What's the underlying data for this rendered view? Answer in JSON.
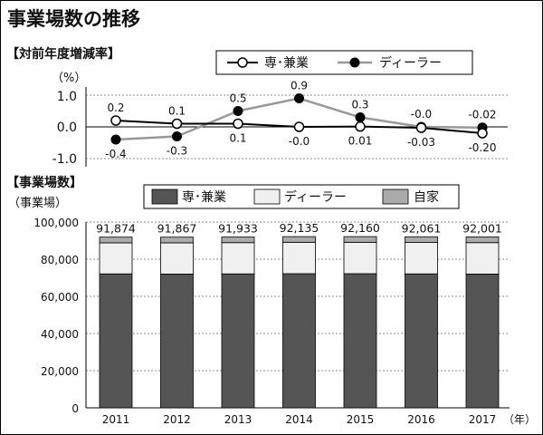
{
  "title": "事業場数の推移",
  "chart_data": [
    {
      "type": "line",
      "title": "【対前年度増減率】",
      "unit": "（%）",
      "ylim": [
        -1.0,
        1.0
      ],
      "yticks": [
        "1.0",
        "0.0",
        "-1.0"
      ],
      "x": [
        "2011",
        "2012",
        "2013",
        "2014",
        "2015",
        "2016",
        "2017"
      ],
      "series": [
        {
          "name": "専･兼業",
          "marker": "open-circle",
          "color": "#000000",
          "values": [
            0.2,
            0.1,
            0.1,
            0.0,
            0.01,
            -0.03,
            -0.2
          ],
          "labels": [
            "0.2",
            "0.1",
            "0.1",
            "-0.0",
            "0.01",
            "-0.03",
            "-0.20"
          ]
        },
        {
          "name": "ディーラー",
          "marker": "filled-circle",
          "color": "#999999",
          "values": [
            -0.4,
            -0.3,
            0.5,
            0.9,
            0.3,
            -0.0,
            -0.02
          ],
          "labels": [
            "-0.4",
            "-0.3",
            "0.5",
            "0.9",
            "0.3",
            "-0.0",
            "-0.02"
          ]
        }
      ]
    },
    {
      "type": "bar",
      "stacked": true,
      "title": "【事業場数】",
      "unit": "（事業場）",
      "categories": [
        "2011",
        "2012",
        "2013",
        "2014",
        "2015",
        "2016",
        "2017"
      ],
      "x_unit": "（年）",
      "ylim": [
        0,
        100000
      ],
      "yticks": [
        "100,000",
        "80,000",
        "60,000",
        "40,000",
        "20,000",
        "0"
      ],
      "series": [
        {
          "name": "専･兼業",
          "color": "#555555",
          "values": [
            72100,
            72000,
            72100,
            72200,
            72200,
            72100,
            72000
          ]
        },
        {
          "name": "ディーラー",
          "color": "#f0f0f0",
          "values": [
            16700,
            16800,
            16800,
            16900,
            16900,
            16900,
            16900
          ]
        },
        {
          "name": "自家",
          "color": "#aaaaaa",
          "values": [
            3074,
            3067,
            3033,
            3035,
            3060,
            3061,
            3101
          ]
        }
      ],
      "totals": [
        "91,874",
        "91,867",
        "91,933",
        "92,135",
        "92,160",
        "92,061",
        "92,001"
      ]
    }
  ]
}
